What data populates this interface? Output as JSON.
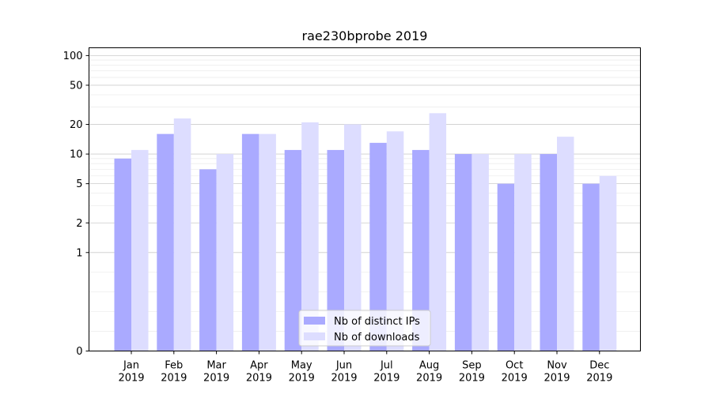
{
  "chart_data": {
    "type": "bar",
    "title": "rae230bprobe 2019",
    "xlabel": "",
    "ylabel": "",
    "yscale": "symlog",
    "ylim": [
      0,
      120
    ],
    "yticks": [
      0,
      1,
      2,
      5,
      10,
      20,
      50,
      100
    ],
    "categories": [
      [
        "Jan",
        "2019"
      ],
      [
        "Feb",
        "2019"
      ],
      [
        "Mar",
        "2019"
      ],
      [
        "Apr",
        "2019"
      ],
      [
        "May",
        "2019"
      ],
      [
        "Jun",
        "2019"
      ],
      [
        "Jul",
        "2019"
      ],
      [
        "Aug",
        "2019"
      ],
      [
        "Sep",
        "2019"
      ],
      [
        "Oct",
        "2019"
      ],
      [
        "Nov",
        "2019"
      ],
      [
        "Dec",
        "2019"
      ]
    ],
    "series": [
      {
        "name": "Nb of distinct IPs",
        "color": "#aaaaff",
        "values": [
          9,
          16,
          7,
          16,
          11,
          11,
          13,
          11,
          10,
          5,
          10,
          5
        ]
      },
      {
        "name": "Nb of downloads",
        "color": "#ddddff",
        "values": [
          11,
          23,
          10,
          16,
          21,
          20,
          17,
          26,
          10,
          10,
          15,
          6
        ]
      }
    ],
    "grid": true,
    "legend_position": "bottom-center"
  }
}
